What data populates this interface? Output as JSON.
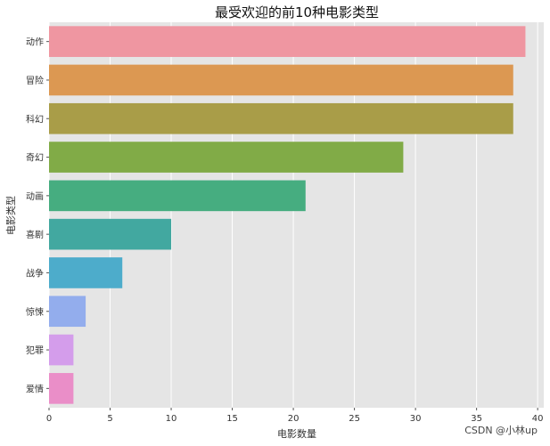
{
  "chart_data": {
    "type": "bar",
    "orientation": "horizontal",
    "title": "最受欢迎的前10种电影类型",
    "xlabel": "电影数量",
    "ylabel": "电影类型",
    "categories": [
      "动作",
      "冒险",
      "科幻",
      "奇幻",
      "动画",
      "喜剧",
      "战争",
      "惊悚",
      "犯罪",
      "爱情"
    ],
    "values": [
      39,
      38,
      38,
      29,
      21,
      10,
      6,
      3,
      2,
      2
    ],
    "colors": [
      "#ef96a1",
      "#dc9852",
      "#a99d48",
      "#81ab47",
      "#46ad80",
      "#42a8a0",
      "#4daccb",
      "#93aded",
      "#d49deb",
      "#ea8ec8"
    ],
    "xlim": [
      0,
      40.5
    ],
    "xticks": [
      0,
      5,
      10,
      15,
      20,
      25,
      30,
      35,
      40
    ],
    "grid": true,
    "background": "#e5e5e5"
  },
  "watermark": "CSDN @小林up"
}
